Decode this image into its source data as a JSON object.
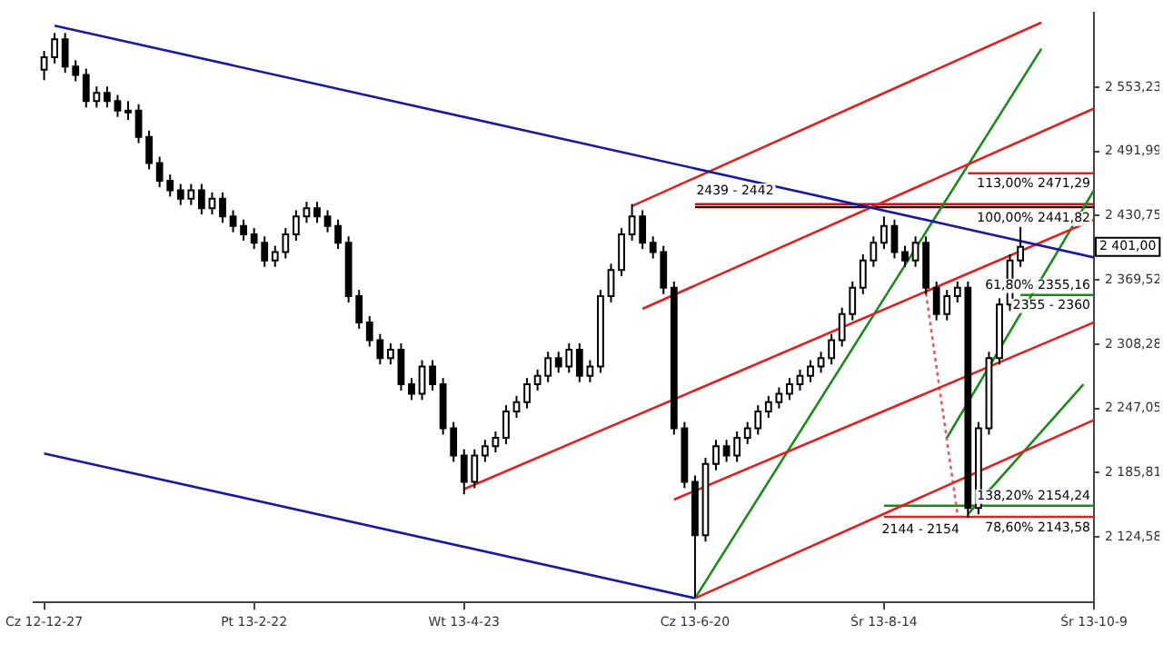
{
  "chart_data": {
    "type": "candlestick",
    "categories": [
      "Cz 12-12-27",
      null,
      null,
      null,
      null,
      null,
      null,
      null,
      null,
      null,
      null,
      null,
      null,
      null,
      null,
      null,
      null,
      null,
      null,
      null,
      "Pt 13-2-22",
      null,
      null,
      null,
      null,
      null,
      null,
      null,
      null,
      null,
      null,
      null,
      null,
      null,
      null,
      null,
      null,
      null,
      null,
      null,
      "Wt 13-4-23",
      null,
      null,
      null,
      null,
      null,
      null,
      null,
      null,
      null,
      null,
      null,
      null,
      null,
      null,
      null,
      null,
      null,
      null,
      null,
      null,
      null,
      "Cz 13-6-20",
      null,
      null,
      null,
      null,
      null,
      null,
      null,
      null,
      null,
      null,
      null,
      null,
      null,
      null,
      null,
      null,
      null,
      "Śr 13-8-14",
      null,
      null,
      null,
      null,
      null,
      null,
      null,
      null,
      null,
      null,
      null,
      null,
      null,
      null,
      null,
      null,
      null,
      null,
      null,
      "Śr 13-10-9"
    ],
    "ohlc": [
      [
        2570,
        2588,
        2560,
        2582
      ],
      [
        2582,
        2605,
        2576,
        2599
      ],
      [
        2599,
        2605,
        2567,
        2573
      ],
      [
        2573,
        2579,
        2559,
        2565
      ],
      [
        2565,
        2571,
        2534,
        2540
      ],
      [
        2540,
        2554,
        2534,
        2548
      ],
      [
        2548,
        2554,
        2534,
        2540
      ],
      [
        2540,
        2546,
        2525,
        2531
      ],
      [
        2531,
        2540,
        2522,
        2531
      ],
      [
        2531,
        2537,
        2500,
        2506
      ],
      [
        2506,
        2512,
        2475,
        2481
      ],
      [
        2481,
        2487,
        2458,
        2464
      ],
      [
        2464,
        2470,
        2449,
        2455
      ],
      [
        2455,
        2461,
        2441,
        2447
      ],
      [
        2447,
        2461,
        2441,
        2455
      ],
      [
        2455,
        2461,
        2432,
        2438
      ],
      [
        2438,
        2453,
        2432,
        2447
      ],
      [
        2447,
        2453,
        2424,
        2430
      ],
      [
        2430,
        2436,
        2415,
        2421
      ],
      [
        2421,
        2427,
        2407,
        2413
      ],
      [
        2413,
        2419,
        2399,
        2405
      ],
      [
        2405,
        2411,
        2382,
        2388
      ],
      [
        2388,
        2402,
        2382,
        2396
      ],
      [
        2396,
        2419,
        2390,
        2413
      ],
      [
        2413,
        2436,
        2407,
        2430
      ],
      [
        2430,
        2444,
        2424,
        2438
      ],
      [
        2438,
        2444,
        2424,
        2430
      ],
      [
        2430,
        2436,
        2415,
        2421
      ],
      [
        2421,
        2427,
        2399,
        2405
      ],
      [
        2405,
        2411,
        2348,
        2354
      ],
      [
        2354,
        2360,
        2323,
        2329
      ],
      [
        2329,
        2335,
        2306,
        2312
      ],
      [
        2312,
        2318,
        2289,
        2295
      ],
      [
        2295,
        2309,
        2289,
        2303
      ],
      [
        2303,
        2309,
        2264,
        2270
      ],
      [
        2270,
        2276,
        2255,
        2261
      ],
      [
        2261,
        2293,
        2255,
        2287
      ],
      [
        2287,
        2293,
        2264,
        2270
      ],
      [
        2270,
        2276,
        2222,
        2228
      ],
      [
        2228,
        2234,
        2196,
        2202
      ],
      [
        2202,
        2208,
        2165,
        2177
      ],
      [
        2177,
        2208,
        2171,
        2202
      ],
      [
        2202,
        2217,
        2196,
        2211
      ],
      [
        2211,
        2225,
        2205,
        2219
      ],
      [
        2219,
        2250,
        2213,
        2244
      ],
      [
        2244,
        2259,
        2238,
        2253
      ],
      [
        2253,
        2276,
        2247,
        2270
      ],
      [
        2270,
        2284,
        2264,
        2278
      ],
      [
        2278,
        2301,
        2272,
        2295
      ],
      [
        2295,
        2301,
        2281,
        2287
      ],
      [
        2287,
        2309,
        2281,
        2303
      ],
      [
        2303,
        2309,
        2272,
        2278
      ],
      [
        2278,
        2293,
        2272,
        2287
      ],
      [
        2287,
        2360,
        2281,
        2354
      ],
      [
        2354,
        2385,
        2348,
        2379
      ],
      [
        2379,
        2419,
        2373,
        2413
      ],
      [
        2413,
        2442,
        2407,
        2430
      ],
      [
        2430,
        2436,
        2399,
        2405
      ],
      [
        2405,
        2411,
        2390,
        2396
      ],
      [
        2396,
        2402,
        2356,
        2362
      ],
      [
        2362,
        2368,
        2222,
        2228
      ],
      [
        2228,
        2234,
        2171,
        2177
      ],
      [
        2177,
        2183,
        2067,
        2126
      ],
      [
        2126,
        2200,
        2120,
        2194
      ],
      [
        2194,
        2217,
        2188,
        2211
      ],
      [
        2211,
        2217,
        2196,
        2202
      ],
      [
        2202,
        2225,
        2196,
        2219
      ],
      [
        2219,
        2234,
        2213,
        2228
      ],
      [
        2228,
        2250,
        2222,
        2244
      ],
      [
        2244,
        2259,
        2238,
        2253
      ],
      [
        2253,
        2267,
        2247,
        2261
      ],
      [
        2261,
        2276,
        2255,
        2270
      ],
      [
        2270,
        2284,
        2264,
        2278
      ],
      [
        2278,
        2293,
        2272,
        2287
      ],
      [
        2287,
        2301,
        2281,
        2295
      ],
      [
        2295,
        2318,
        2289,
        2312
      ],
      [
        2312,
        2343,
        2306,
        2337
      ],
      [
        2337,
        2368,
        2331,
        2362
      ],
      [
        2362,
        2394,
        2356,
        2388
      ],
      [
        2388,
        2411,
        2382,
        2405
      ],
      [
        2405,
        2430,
        2399,
        2421
      ],
      [
        2421,
        2427,
        2390,
        2396
      ],
      [
        2396,
        2402,
        2382,
        2388
      ],
      [
        2388,
        2411,
        2382,
        2405
      ],
      [
        2405,
        2411,
        2356,
        2362
      ],
      [
        2362,
        2368,
        2331,
        2337
      ],
      [
        2337,
        2360,
        2331,
        2354
      ],
      [
        2354,
        2368,
        2348,
        2362
      ],
      [
        2362,
        2368,
        2143,
        2152
      ],
      [
        2152,
        2234,
        2146,
        2228
      ],
      [
        2228,
        2301,
        2222,
        2295
      ],
      [
        2295,
        2352,
        2289,
        2346
      ],
      [
        2346,
        2394,
        2340,
        2388
      ],
      [
        2388,
        2420,
        2382,
        2401
      ],
      null,
      null,
      null,
      null,
      null,
      null,
      null
    ],
    "series": [
      {
        "type": "line",
        "color": "#1a1aa0",
        "values": [
          null,
          2612,
          null,
          null,
          null,
          null,
          null,
          null,
          null,
          null,
          null,
          null,
          null,
          null,
          null,
          null,
          null,
          null,
          null,
          null,
          null,
          null,
          null,
          null,
          null,
          null,
          null,
          null,
          null,
          null,
          null,
          null,
          null,
          null,
          null,
          null,
          null,
          null,
          null,
          null,
          null,
          null,
          null,
          null,
          null,
          null,
          null,
          null,
          null,
          null,
          null,
          null,
          null,
          null,
          null,
          null,
          null,
          null,
          null,
          null,
          null,
          null,
          null,
          null,
          null,
          null,
          null,
          null,
          null,
          null,
          null,
          null,
          null,
          null,
          null,
          null,
          null,
          null,
          null,
          null,
          null,
          null,
          null,
          null,
          null,
          null,
          null,
          null,
          null,
          null,
          null,
          null,
          null,
          null,
          null,
          null,
          null,
          null,
          null,
          null,
          2391
        ]
      },
      {
        "type": "line",
        "color": "#1a1aa0",
        "values": [
          2204,
          null,
          null,
          null,
          null,
          null,
          null,
          null,
          null,
          null,
          null,
          null,
          null,
          null,
          null,
          null,
          null,
          null,
          null,
          null,
          null,
          null,
          null,
          null,
          null,
          null,
          null,
          null,
          null,
          null,
          null,
          null,
          null,
          null,
          null,
          null,
          null,
          null,
          null,
          null,
          null,
          null,
          null,
          null,
          null,
          null,
          null,
          null,
          null,
          null,
          null,
          null,
          null,
          null,
          null,
          null,
          null,
          null,
          null,
          null,
          null,
          null,
          2066,
          null,
          null,
          null,
          null,
          null,
          null,
          null,
          null,
          null,
          null,
          null,
          null,
          null,
          null,
          null,
          null,
          null,
          null,
          null,
          null,
          null,
          null,
          null,
          null,
          null,
          null,
          null,
          null,
          null,
          null,
          null,
          null,
          null,
          null,
          null,
          null,
          null,
          null
        ]
      },
      {
        "type": "line",
        "color": "#e02020",
        "values": [
          null,
          null,
          null,
          null,
          null,
          null,
          null,
          null,
          null,
          null,
          null,
          null,
          null,
          null,
          null,
          null,
          null,
          null,
          null,
          null,
          null,
          null,
          null,
          null,
          null,
          null,
          null,
          null,
          null,
          null,
          null,
          null,
          null,
          null,
          null,
          null,
          null,
          null,
          null,
          null,
          null,
          null,
          null,
          null,
          null,
          null,
          null,
          null,
          null,
          null,
          null,
          null,
          null,
          null,
          null,
          null,
          2440,
          null,
          null,
          null,
          null,
          null,
          null,
          null,
          null,
          null,
          null,
          null,
          null,
          null,
          null,
          null,
          null,
          null,
          null,
          null,
          null,
          null,
          null,
          null,
          null,
          null,
          null,
          null,
          null,
          null,
          null,
          null,
          null,
          null,
          null,
          null,
          null,
          null,
          null,
          2615,
          null,
          null,
          null,
          null,
          null
        ]
      },
      {
        "type": "line",
        "color": "#e02020",
        "values": [
          null,
          null,
          null,
          null,
          null,
          null,
          null,
          null,
          null,
          null,
          null,
          null,
          null,
          null,
          null,
          null,
          null,
          null,
          null,
          null,
          null,
          null,
          null,
          null,
          null,
          null,
          null,
          null,
          null,
          null,
          null,
          null,
          null,
          null,
          null,
          null,
          null,
          null,
          null,
          null,
          null,
          null,
          null,
          null,
          null,
          null,
          null,
          null,
          null,
          null,
          null,
          null,
          null,
          null,
          null,
          null,
          null,
          2342,
          null,
          null,
          null,
          null,
          null,
          null,
          null,
          null,
          null,
          null,
          null,
          null,
          null,
          null,
          null,
          null,
          null,
          null,
          null,
          null,
          null,
          null,
          null,
          null,
          null,
          null,
          null,
          null,
          null,
          null,
          null,
          null,
          null,
          null,
          null,
          null,
          null,
          null,
          null,
          null,
          null,
          null,
          2533
        ]
      },
      {
        "type": "line",
        "color": "#e02020",
        "values": [
          null,
          null,
          null,
          null,
          null,
          null,
          null,
          null,
          null,
          null,
          null,
          null,
          null,
          null,
          null,
          null,
          null,
          null,
          null,
          null,
          null,
          null,
          null,
          null,
          null,
          null,
          null,
          null,
          null,
          null,
          null,
          null,
          null,
          null,
          null,
          null,
          null,
          null,
          null,
          null,
          2170,
          null,
          null,
          null,
          null,
          null,
          null,
          null,
          null,
          null,
          null,
          null,
          null,
          null,
          null,
          null,
          null,
          null,
          null,
          null,
          null,
          null,
          null,
          null,
          null,
          null,
          null,
          null,
          null,
          null,
          null,
          null,
          null,
          null,
          null,
          null,
          null,
          null,
          null,
          null,
          null,
          null,
          null,
          null,
          null,
          null,
          null,
          null,
          null,
          null,
          null,
          null,
          null,
          null,
          null,
          null,
          null,
          null,
          null,
          null,
          2427
        ]
      },
      {
        "type": "line",
        "color": "#e02020",
        "values": [
          null,
          null,
          null,
          null,
          null,
          null,
          null,
          null,
          null,
          null,
          null,
          null,
          null,
          null,
          null,
          null,
          null,
          null,
          null,
          null,
          null,
          null,
          null,
          null,
          null,
          null,
          null,
          null,
          null,
          null,
          null,
          null,
          null,
          null,
          null,
          null,
          null,
          null,
          null,
          null,
          null,
          null,
          null,
          null,
          null,
          null,
          null,
          null,
          null,
          null,
          null,
          null,
          null,
          null,
          null,
          null,
          null,
          null,
          null,
          null,
          2160,
          null,
          null,
          null,
          null,
          null,
          null,
          null,
          null,
          null,
          null,
          null,
          null,
          null,
          null,
          null,
          null,
          null,
          null,
          null,
          null,
          null,
          null,
          null,
          null,
          null,
          null,
          null,
          null,
          null,
          null,
          null,
          null,
          null,
          null,
          null,
          null,
          null,
          null,
          null,
          2329
        ]
      },
      {
        "type": "line",
        "color": "#e02020",
        "values": [
          null,
          null,
          null,
          null,
          null,
          null,
          null,
          null,
          null,
          null,
          null,
          null,
          null,
          null,
          null,
          null,
          null,
          null,
          null,
          null,
          null,
          null,
          null,
          null,
          null,
          null,
          null,
          null,
          null,
          null,
          null,
          null,
          null,
          null,
          null,
          null,
          null,
          null,
          null,
          null,
          null,
          null,
          null,
          null,
          null,
          null,
          null,
          null,
          null,
          null,
          null,
          null,
          null,
          null,
          null,
          null,
          null,
          null,
          null,
          null,
          null,
          null,
          2066,
          null,
          null,
          null,
          null,
          null,
          null,
          null,
          null,
          null,
          null,
          null,
          null,
          null,
          null,
          null,
          null,
          null,
          null,
          null,
          null,
          null,
          null,
          null,
          null,
          null,
          null,
          null,
          null,
          null,
          null,
          null,
          null,
          null,
          null,
          null,
          null,
          null,
          2236
        ]
      },
      {
        "type": "line",
        "color": "#1a8a1a",
        "values": [
          null,
          null,
          null,
          null,
          null,
          null,
          null,
          null,
          null,
          null,
          null,
          null,
          null,
          null,
          null,
          null,
          null,
          null,
          null,
          null,
          null,
          null,
          null,
          null,
          null,
          null,
          null,
          null,
          null,
          null,
          null,
          null,
          null,
          null,
          null,
          null,
          null,
          null,
          null,
          null,
          null,
          null,
          null,
          null,
          null,
          null,
          null,
          null,
          null,
          null,
          null,
          null,
          null,
          null,
          null,
          null,
          null,
          null,
          null,
          null,
          null,
          null,
          2066,
          null,
          null,
          null,
          null,
          null,
          null,
          null,
          null,
          null,
          null,
          null,
          null,
          null,
          null,
          null,
          null,
          null,
          null,
          null,
          null,
          null,
          null,
          null,
          null,
          null,
          null,
          null,
          null,
          null,
          null,
          null,
          null,
          2590,
          null,
          null,
          null,
          null,
          null
        ]
      },
      {
        "type": "line",
        "color": "#1a8a1a",
        "values": [
          null,
          null,
          null,
          null,
          null,
          null,
          null,
          null,
          null,
          null,
          null,
          null,
          null,
          null,
          null,
          null,
          null,
          null,
          null,
          null,
          null,
          null,
          null,
          null,
          null,
          null,
          null,
          null,
          null,
          null,
          null,
          null,
          null,
          null,
          null,
          null,
          null,
          null,
          null,
          null,
          null,
          null,
          null,
          null,
          null,
          null,
          null,
          null,
          null,
          null,
          null,
          null,
          null,
          null,
          null,
          null,
          null,
          null,
          null,
          null,
          null,
          null,
          null,
          null,
          null,
          null,
          null,
          null,
          null,
          null,
          null,
          null,
          null,
          null,
          null,
          null,
          null,
          null,
          null,
          null,
          null,
          null,
          null,
          null,
          null,
          null,
          2219,
          null,
          null,
          null,
          null,
          null,
          null,
          null,
          null,
          null,
          null,
          null,
          null,
          null,
          2455
        ]
      },
      {
        "type": "line",
        "color": "#1a8a1a",
        "values": [
          null,
          null,
          null,
          null,
          null,
          null,
          null,
          null,
          null,
          null,
          null,
          null,
          null,
          null,
          null,
          null,
          null,
          null,
          null,
          null,
          null,
          null,
          null,
          null,
          null,
          null,
          null,
          null,
          null,
          null,
          null,
          null,
          null,
          null,
          null,
          null,
          null,
          null,
          null,
          null,
          null,
          null,
          null,
          null,
          null,
          null,
          null,
          null,
          null,
          null,
          null,
          null,
          null,
          null,
          null,
          null,
          null,
          null,
          null,
          null,
          null,
          null,
          null,
          null,
          null,
          null,
          null,
          null,
          null,
          null,
          null,
          null,
          null,
          null,
          null,
          null,
          null,
          null,
          null,
          null,
          null,
          null,
          null,
          null,
          null,
          null,
          null,
          null,
          2146,
          null,
          null,
          null,
          null,
          null,
          null,
          null,
          null,
          null,
          null,
          2270,
          null
        ]
      },
      {
        "type": "line",
        "color": "#e06060",
        "line_style": "dotted",
        "values": [
          null,
          null,
          null,
          null,
          null,
          null,
          null,
          null,
          null,
          null,
          null,
          null,
          null,
          null,
          null,
          null,
          null,
          null,
          null,
          null,
          null,
          null,
          null,
          null,
          null,
          null,
          null,
          null,
          null,
          null,
          null,
          null,
          null,
          null,
          null,
          null,
          null,
          null,
          null,
          null,
          null,
          null,
          null,
          null,
          null,
          null,
          null,
          null,
          null,
          null,
          null,
          null,
          null,
          null,
          null,
          null,
          null,
          null,
          null,
          null,
          null,
          null,
          null,
          null,
          null,
          null,
          null,
          null,
          null,
          null,
          null,
          null,
          null,
          null,
          null,
          null,
          null,
          null,
          null,
          null,
          null,
          null,
          null,
          null,
          2357,
          null,
          null,
          2146,
          null,
          null,
          null,
          null,
          null,
          null,
          null,
          null,
          null,
          null,
          null,
          null,
          null
        ]
      },
      {
        "type": "line",
        "color": "#d01010",
        "values": [
          null,
          null,
          null,
          null,
          null,
          null,
          null,
          null,
          null,
          null,
          null,
          null,
          null,
          null,
          null,
          null,
          null,
          null,
          null,
          null,
          null,
          null,
          null,
          null,
          null,
          null,
          null,
          null,
          null,
          null,
          null,
          null,
          null,
          null,
          null,
          null,
          null,
          null,
          null,
          null,
          null,
          null,
          null,
          null,
          null,
          null,
          null,
          null,
          null,
          null,
          null,
          null,
          null,
          null,
          null,
          null,
          null,
          null,
          null,
          null,
          null,
          null,
          2441.82,
          null,
          null,
          null,
          null,
          null,
          null,
          null,
          null,
          null,
          null,
          null,
          null,
          null,
          null,
          null,
          null,
          null,
          null,
          null,
          null,
          null,
          null,
          null,
          null,
          null,
          null,
          null,
          null,
          null,
          null,
          null,
          null,
          null,
          null,
          null,
          null,
          null,
          2441.82
        ]
      },
      {
        "type": "line",
        "color": "#400000",
        "values": [
          null,
          null,
          null,
          null,
          null,
          null,
          null,
          null,
          null,
          null,
          null,
          null,
          null,
          null,
          null,
          null,
          null,
          null,
          null,
          null,
          null,
          null,
          null,
          null,
          null,
          null,
          null,
          null,
          null,
          null,
          null,
          null,
          null,
          null,
          null,
          null,
          null,
          null,
          null,
          null,
          null,
          null,
          null,
          null,
          null,
          null,
          null,
          null,
          null,
          null,
          null,
          null,
          null,
          null,
          null,
          null,
          null,
          null,
          null,
          null,
          null,
          null,
          2439,
          null,
          null,
          null,
          null,
          null,
          null,
          null,
          null,
          null,
          null,
          null,
          null,
          null,
          null,
          null,
          null,
          null,
          null,
          null,
          null,
          null,
          null,
          null,
          null,
          null,
          null,
          null,
          null,
          null,
          null,
          null,
          null,
          null,
          null,
          null,
          null,
          null,
          2439
        ]
      },
      {
        "type": "line",
        "color": "#e02020",
        "values": [
          null,
          null,
          null,
          null,
          null,
          null,
          null,
          null,
          null,
          null,
          null,
          null,
          null,
          null,
          null,
          null,
          null,
          null,
          null,
          null,
          null,
          null,
          null,
          null,
          null,
          null,
          null,
          null,
          null,
          null,
          null,
          null,
          null,
          null,
          null,
          null,
          null,
          null,
          null,
          null,
          null,
          null,
          null,
          null,
          null,
          null,
          null,
          null,
          null,
          null,
          null,
          null,
          null,
          null,
          null,
          null,
          null,
          null,
          null,
          null,
          null,
          null,
          null,
          null,
          null,
          null,
          null,
          null,
          null,
          null,
          null,
          null,
          null,
          null,
          null,
          null,
          null,
          null,
          null,
          null,
          null,
          null,
          null,
          null,
          null,
          null,
          null,
          null,
          2471.29,
          null,
          null,
          null,
          null,
          null,
          null,
          null,
          null,
          null,
          null,
          null,
          2471.29
        ]
      },
      {
        "type": "line",
        "color": "#1a8a1a",
        "values": [
          null,
          null,
          null,
          null,
          null,
          null,
          null,
          null,
          null,
          null,
          null,
          null,
          null,
          null,
          null,
          null,
          null,
          null,
          null,
          null,
          null,
          null,
          null,
          null,
          null,
          null,
          null,
          null,
          null,
          null,
          null,
          null,
          null,
          null,
          null,
          null,
          null,
          null,
          null,
          null,
          null,
          null,
          null,
          null,
          null,
          null,
          null,
          null,
          null,
          null,
          null,
          null,
          null,
          null,
          null,
          null,
          null,
          null,
          null,
          null,
          null,
          null,
          null,
          null,
          null,
          null,
          null,
          null,
          null,
          null,
          null,
          null,
          null,
          null,
          null,
          null,
          null,
          null,
          null,
          null,
          null,
          null,
          null,
          null,
          null,
          null,
          null,
          null,
          null,
          null,
          null,
          null,
          null,
          2355.16,
          null,
          null,
          null,
          null,
          null,
          null,
          2355.16
        ]
      },
      {
        "type": "line",
        "color": "#1a8a1a",
        "values": [
          null,
          null,
          null,
          null,
          null,
          null,
          null,
          null,
          null,
          null,
          null,
          null,
          null,
          null,
          null,
          null,
          null,
          null,
          null,
          null,
          null,
          null,
          null,
          null,
          null,
          null,
          null,
          null,
          null,
          null,
          null,
          null,
          null,
          null,
          null,
          null,
          null,
          null,
          null,
          null,
          null,
          null,
          null,
          null,
          null,
          null,
          null,
          null,
          null,
          null,
          null,
          null,
          null,
          null,
          null,
          null,
          null,
          null,
          null,
          null,
          null,
          null,
          null,
          null,
          null,
          null,
          null,
          null,
          null,
          null,
          null,
          null,
          null,
          null,
          null,
          null,
          null,
          null,
          null,
          null,
          2154.24,
          null,
          null,
          null,
          null,
          null,
          null,
          null,
          null,
          null,
          null,
          null,
          null,
          null,
          null,
          null,
          null,
          null,
          null,
          null,
          2154.24
        ]
      },
      {
        "type": "line",
        "color": "#e02020",
        "values": [
          null,
          null,
          null,
          null,
          null,
          null,
          null,
          null,
          null,
          null,
          null,
          null,
          null,
          null,
          null,
          null,
          null,
          null,
          null,
          null,
          null,
          null,
          null,
          null,
          null,
          null,
          null,
          null,
          null,
          null,
          null,
          null,
          null,
          null,
          null,
          null,
          null,
          null,
          null,
          null,
          null,
          null,
          null,
          null,
          null,
          null,
          null,
          null,
          null,
          null,
          null,
          null,
          null,
          null,
          null,
          null,
          null,
          null,
          null,
          null,
          null,
          null,
          null,
          null,
          null,
          null,
          null,
          null,
          null,
          null,
          null,
          null,
          null,
          null,
          null,
          null,
          null,
          null,
          null,
          null,
          2143.58,
          null,
          null,
          null,
          null,
          null,
          null,
          null,
          null,
          null,
          null,
          null,
          null,
          null,
          null,
          null,
          null,
          null,
          null,
          null,
          2143.58
        ]
      }
    ],
    "annotations": [
      {
        "text": "2439 - 2442",
        "y": 2439
      },
      {
        "text": "113,00% 2471,29",
        "y": 2471.29
      },
      {
        "text": "100,00% 2441,82",
        "y": 2441.82
      },
      {
        "text": "61,80% 2355,16",
        "y": 2355.16
      },
      {
        "text": "2355 - 2360",
        "y": 2355.16
      },
      {
        "text": "138,20% 2154,24",
        "y": 2154.24
      },
      {
        "text": "78,60% 2143,58",
        "y": 2143.58
      },
      {
        "text": "2144 - 2154",
        "y": 2143.58
      },
      "2 401,00"
    ],
    "ylim": [
      2062,
      2624
    ],
    "yticks": [
      {
        "value": 2124.58,
        "label": "2 124,58"
      },
      {
        "value": 2185.81,
        "label": "2 185,81"
      },
      {
        "value": 2247.05,
        "label": "2 247,05"
      },
      {
        "value": 2308.28,
        "label": "2 308,28"
      },
      {
        "value": 2369.52,
        "label": "2 369,52"
      },
      {
        "value": 2430.75,
        "label": "2 430,75"
      },
      {
        "value": 2491.99,
        "label": "2 491,99"
      },
      {
        "value": 2553.23,
        "label": "2 553,23"
      }
    ],
    "grid": false,
    "legend": false
  }
}
